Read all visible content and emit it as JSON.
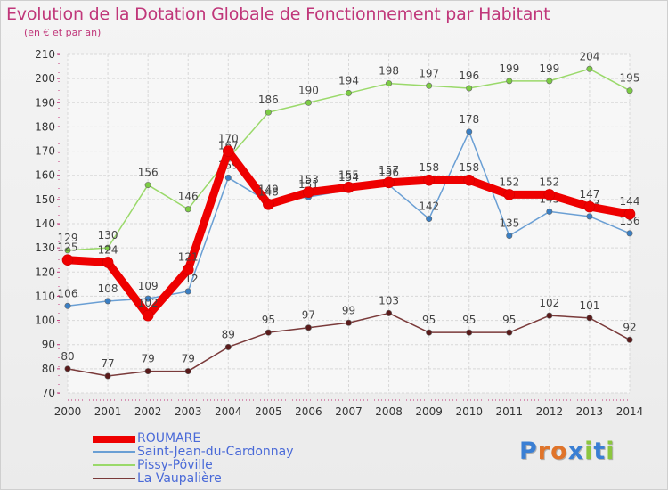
{
  "header": {
    "title": "Evolution de la Dotation Globale de Fonctionnement par Habitant",
    "subtitle": "(en € et par an)"
  },
  "chart_data": {
    "type": "line",
    "x": [
      "2000",
      "2001",
      "2002",
      "2003",
      "2004",
      "2005",
      "2006",
      "2007",
      "2008",
      "2009",
      "2010",
      "2011",
      "2012",
      "2013",
      "2014"
    ],
    "yticks": [
      70,
      80,
      90,
      100,
      110,
      120,
      130,
      140,
      150,
      160,
      170,
      180,
      190,
      200,
      210
    ],
    "ylim": [
      70,
      210
    ],
    "grid": true,
    "legend_position": "bottom-left",
    "series": [
      {
        "name": "ROUMARE",
        "color": "#ee0000",
        "marker": "#ee0000",
        "thick": true,
        "values": [
          125,
          124,
          102,
          121,
          170,
          148,
          153,
          155,
          157,
          158,
          158,
          152,
          152,
          147,
          144
        ]
      },
      {
        "name": "Saint-Jean-du-Cardonnay",
        "color": "#6a9fd4",
        "marker": "#3a7fc4",
        "thick": false,
        "values": [
          106,
          108,
          109,
          112,
          159,
          149,
          151,
          154,
          156,
          142,
          178,
          135,
          145,
          143,
          136
        ]
      },
      {
        "name": "Pissy-Pôville",
        "color": "#9ad96a",
        "marker": "#7ccc44",
        "thick": false,
        "values": [
          129,
          130,
          156,
          146,
          167,
          186,
          190,
          194,
          198,
          197,
          196,
          199,
          199,
          204,
          195
        ]
      },
      {
        "name": "La Vaupalière",
        "color": "#7a3a3a",
        "marker": "#5a1a1a",
        "thick": false,
        "values": [
          80,
          77,
          79,
          79,
          89,
          95,
          97,
          99,
          103,
          95,
          95,
          95,
          102,
          101,
          92
        ]
      }
    ]
  },
  "legend": {
    "items": [
      "ROUMARE",
      "Saint-Jean-du-Cardonnay",
      "Pissy-Pôville",
      "La Vaupalière"
    ]
  },
  "logo": {
    "text": "Proxiti",
    "letter_colors": [
      "#3a7fd4",
      "#e0742a",
      "#e0742a",
      "#3a7fd4",
      "#8cc63f",
      "#3a7fd4",
      "#8cc63f"
    ]
  }
}
